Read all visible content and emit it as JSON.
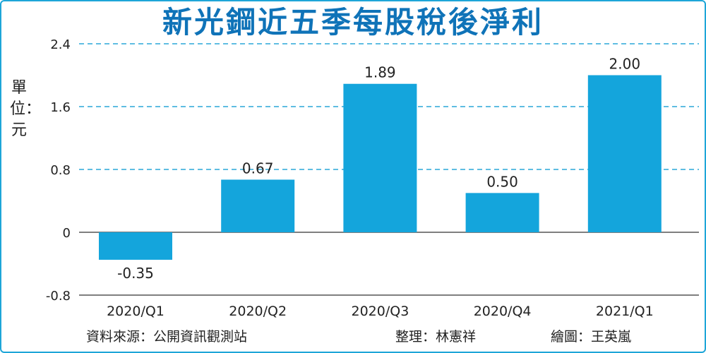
{
  "chart_data": {
    "type": "bar",
    "title": "新光鋼近五季每股稅後淨利",
    "ylabel": "單位：元",
    "categories": [
      "2020/Q1",
      "2020/Q2",
      "2020/Q3",
      "2020/Q4",
      "2021/Q1"
    ],
    "values": [
      -0.35,
      0.67,
      1.89,
      0.5,
      2.0
    ],
    "data_labels": [
      "-0.35",
      "0.67",
      "1.89",
      "0.50",
      "2.00"
    ],
    "y_ticks": [
      "2.4",
      "1.6",
      "0.8",
      "0",
      "-0.8"
    ],
    "y_tick_values": [
      2.4,
      1.6,
      0.8,
      0,
      -0.8
    ],
    "ylim": [
      -0.8,
      2.4
    ],
    "grid": "dashed horizontal at positive ticks",
    "colors": {
      "bar": "#14a5dc",
      "grid": "#2aa7d9",
      "title": "#0f73b8",
      "frame": "#1ea6d8"
    }
  },
  "footer": {
    "source": "資料來源：公開資訊觀測站",
    "compiled": "整理：林憲祥",
    "graphic": "繪圖：王英嵐"
  }
}
